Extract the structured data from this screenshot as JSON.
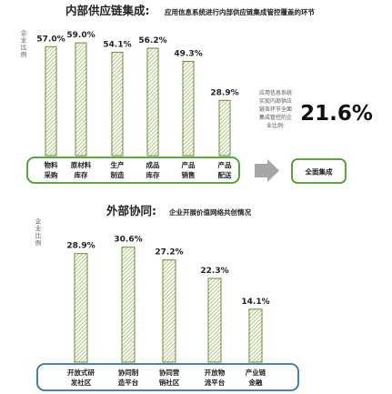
{
  "top": {
    "title": "内部供应链集成:",
    "subtitle": "应用信息系统进行内部供应链集成管控覆盖的环节",
    "side_label": "企业比例",
    "note_lines": [
      "应用信息系统",
      "实现内部供应",
      "链各环节全面",
      "集成管控的企",
      "业比例:"
    ],
    "big_value": "21.6%",
    "arrow_target": "全面集成"
  },
  "bottom": {
    "title": "外部协同:",
    "subtitle": "企业开展价值网络共创情况",
    "side_label": "企业比例"
  },
  "colors": {
    "bar_border": "#6a8f36",
    "bar_hatch": "#8fb34a",
    "green_frame": "#4a9a2a",
    "blue_frame": "#3a6fa8",
    "arrow": "#a6a6a6"
  },
  "chart_data": [
    {
      "type": "bar",
      "title": "内部供应链集成:",
      "subtitle": "应用信息系统进行内部供应链集成管控覆盖的环节",
      "ylabel": "企业比例",
      "categories": [
        [
          "物料",
          "采购"
        ],
        [
          "原材料",
          "库存"
        ],
        [
          "生产",
          "制造"
        ],
        [
          "成品",
          "库存"
        ],
        [
          "产品",
          "销售"
        ],
        [
          "产品",
          "配送"
        ]
      ],
      "values": [
        57.0,
        59.0,
        54.1,
        56.2,
        49.3,
        28.9
      ],
      "labels": [
        "57.0%",
        "59.0%",
        "54.1%",
        "56.2%",
        "49.3%",
        "28.9%"
      ],
      "ylim": [
        0,
        60
      ]
    },
    {
      "type": "bar",
      "title": "外部协同:",
      "subtitle": "企业开展价值网络共创情况",
      "ylabel": "企业比例",
      "categories": [
        [
          "开放式研",
          "发社区"
        ],
        [
          "协同制",
          "造平台"
        ],
        [
          "协同营",
          "销社区"
        ],
        [
          "开放物",
          "流平台"
        ],
        [
          "产业链",
          "金融"
        ]
      ],
      "values": [
        28.9,
        30.6,
        27.2,
        22.3,
        14.1
      ],
      "labels": [
        "28.9%",
        "30.6%",
        "27.2%",
        "22.3%",
        "14.1%"
      ],
      "ylim": [
        0,
        31
      ]
    }
  ]
}
